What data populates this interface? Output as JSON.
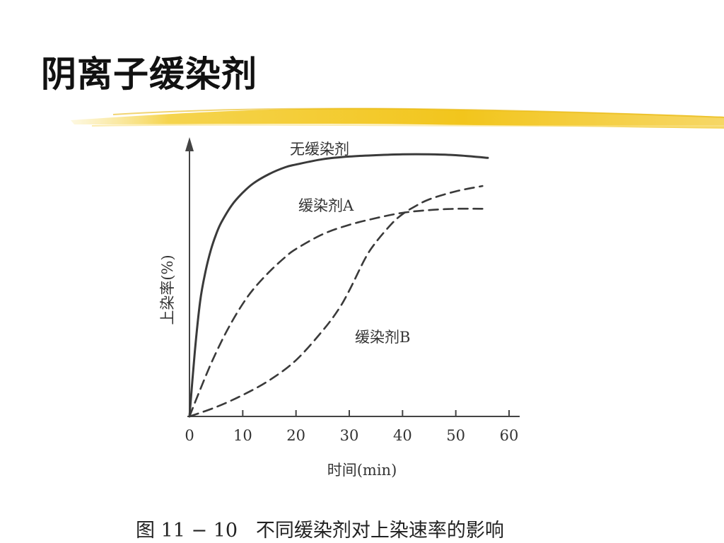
{
  "slide": {
    "title": "阴离子缓染剂",
    "caption": "图 11 − 10   不同缓染剂对上染速率的影响",
    "accent_color": "#f2c51c"
  },
  "chart_data": {
    "type": "line",
    "title": "",
    "xlabel": "时间(min)",
    "ylabel": "上染率(%)",
    "xlim": [
      0,
      60
    ],
    "ylim": [
      0,
      100
    ],
    "xticks": [
      0,
      10,
      20,
      30,
      40,
      50,
      60
    ],
    "y_tick_labels": false,
    "grid": false,
    "series": [
      {
        "name": "无缓染剂",
        "style": "solid",
        "x": [
          0,
          1,
          2,
          3,
          4,
          5,
          6,
          8,
          10,
          12,
          15,
          18,
          20,
          25,
          30,
          35,
          40,
          45,
          50,
          56
        ],
        "y": [
          0,
          24,
          43,
          54,
          62,
          68,
          72.5,
          79,
          83.5,
          87,
          90.5,
          93,
          94,
          96,
          97,
          97.5,
          97.8,
          97.8,
          97.5,
          96.5
        ]
      },
      {
        "name": "缓染剂A",
        "style": "dashed",
        "x": [
          0,
          2,
          4,
          6,
          8,
          10,
          12,
          15,
          18,
          20,
          25,
          30,
          35,
          40,
          45,
          50,
          55
        ],
        "y": [
          0,
          10,
          19.5,
          28,
          35.5,
          42,
          47.5,
          54,
          59.5,
          62.5,
          68,
          71.5,
          74,
          76,
          77,
          77.5,
          77.5
        ]
      },
      {
        "name": "缓染剂B",
        "style": "dashed",
        "x": [
          0,
          5,
          10,
          15,
          20,
          25,
          28,
          30,
          33,
          35,
          38,
          40,
          42,
          45,
          50,
          55
        ],
        "y": [
          0,
          3.5,
          8,
          13.5,
          21,
          32,
          40,
          47,
          59,
          65,
          72,
          75.5,
          78,
          81,
          84,
          86
        ]
      }
    ]
  }
}
